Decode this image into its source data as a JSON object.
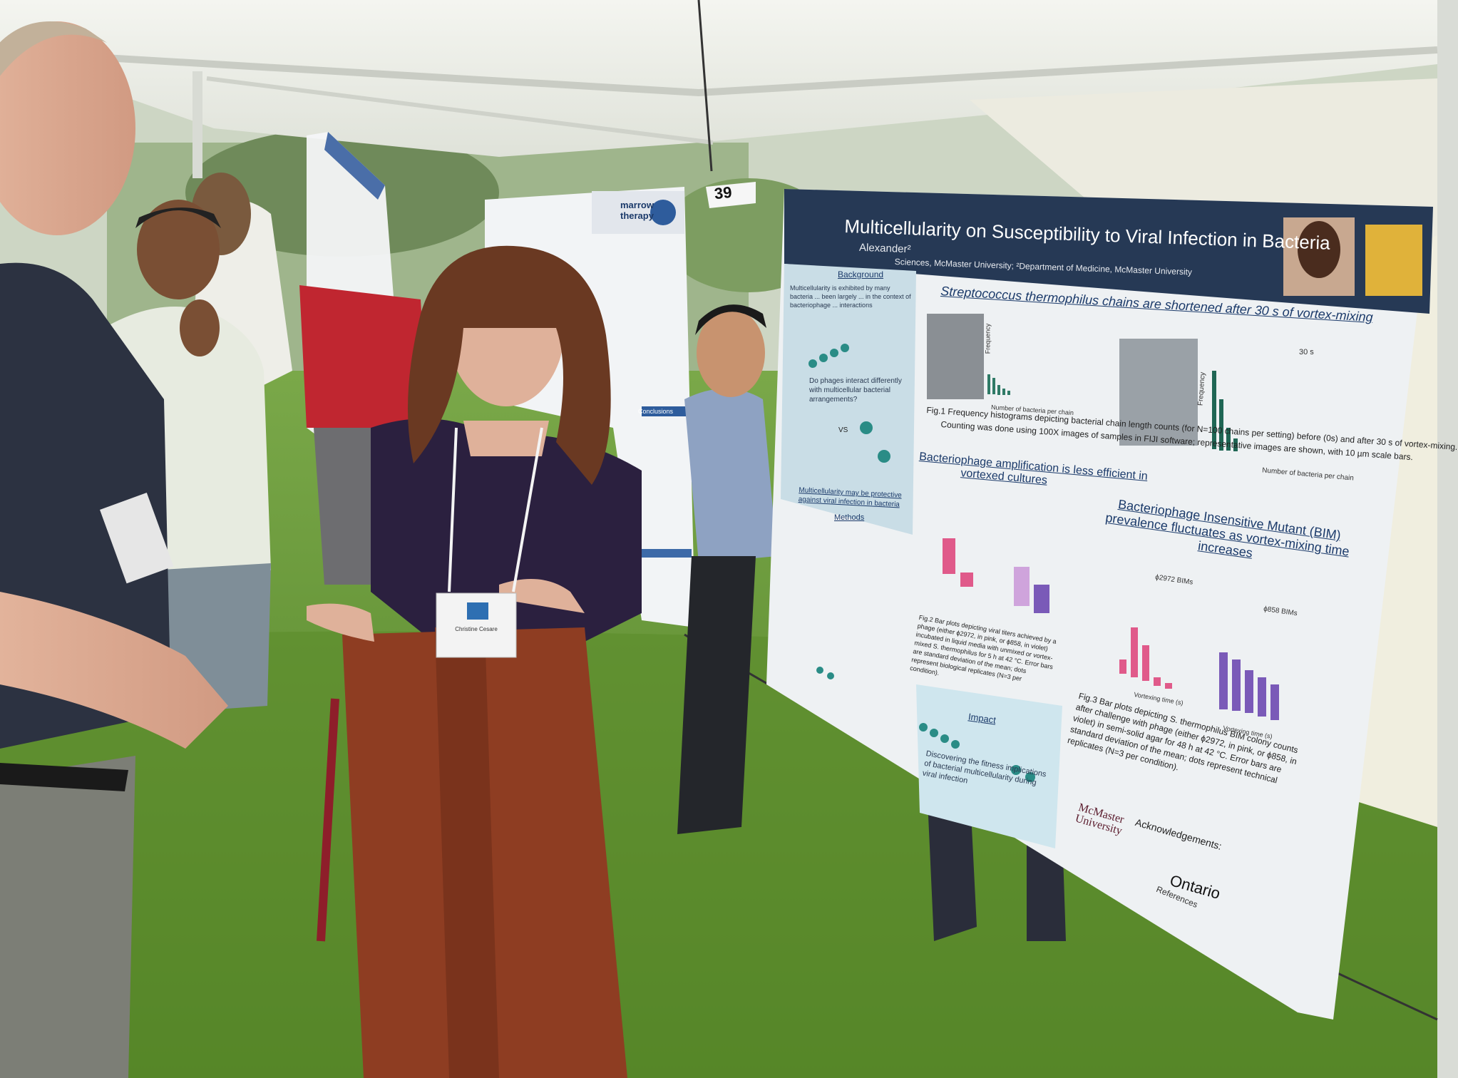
{
  "scene": {
    "colors": {
      "grass": "#5f8f2e",
      "grass_dark": "#3f6b1f",
      "tent": "#eef0ea",
      "poster_bg": "#e9edf0",
      "poster_header": "#24364f",
      "pink": "#e05a8a",
      "violet": "#7a5ab8"
    },
    "booth_number": "39",
    "poster": {
      "title": "Multicellularity on Susceptibility to Viral Infection in Bacteria",
      "authors": "Alexander²",
      "affiliation": "Sciences, McMaster University; ²Department of Medicine, McMaster University",
      "section1_heading": "Streptococcus thermophilus chains are shortened after 30 s of vortex-mixing",
      "fig1_caption": "Fig.1 Frequency histograms depicting bacterial chain length counts (for N=100 chains per setting) before (0s) and after 30 s of vortex-mixing.",
      "fig1_caption2": "Counting was done using 100X images of samples in FIJI software; representative images are shown, with 10 µm scale bars.",
      "hist2_label": "30 s",
      "hist_xlabel": "Number of bacteria per chain",
      "hist_ylabel": "Frequency",
      "section2_heading_line1": "Bacteriophage amplification is less efficient in",
      "section2_heading_line2": "vortexed cultures",
      "section3_heading_line1": "Bacteriophage Insensitive Mutant (BIM)",
      "section3_heading_line2": "prevalence fluctuates as vortex-mixing time",
      "section3_heading_line3": "increases",
      "bim1_label": "ϕ2972 BIMs",
      "bim2_label": "ϕ858 BIMs",
      "bar_xlabel": "Vortexing time (s)",
      "fig2_caption": "Fig.2 Bar plots depicting viral titers achieved by a phage (either ϕ2972, in pink, or ϕ858, in violet) incubated in liquid media with unmixed or vortex-mixed S. thermophilus for 5 h at 42 °C. Error bars are standard deviation of the mean; dots represent biological replicates (N=3 per condition).",
      "fig3_caption": "Fig.3 Bar plots depicting S. thermophilus BIM colony counts after challenge with phage (either ϕ2972, in pink, or ϕ858, in violet) in semi-solid agar for 48 h at 42 °C. Error bars are standard deviation of the mean; dots represent technical replicates (N=3 per condition).",
      "background_label": "Background",
      "background_text": "Multicellularity is exhibited by many bacteria ... been largely ... in the context of bacteriophage ... interactions",
      "question_text": "Do phages interact differently with multicellular bacterial arrangements?",
      "vs_label": "VS",
      "protective_text": "Multicellularity may be protective against viral infection in bacteria",
      "methods_label": "Methods",
      "impact_label": "Impact",
      "impact_text": "Discovering the fitness implications of bacterial multicellularity during viral infection",
      "ack_label": "Acknowledgements:",
      "references_label": "References",
      "mcmaster_logo": "McMaster University",
      "ontario_logo": "Ontario"
    },
    "left_poster": {
      "title_fragment": "marrow therapy",
      "conclusion_label": "Conclusions"
    },
    "name_badge": {
      "name": "Christine Cesare"
    }
  }
}
